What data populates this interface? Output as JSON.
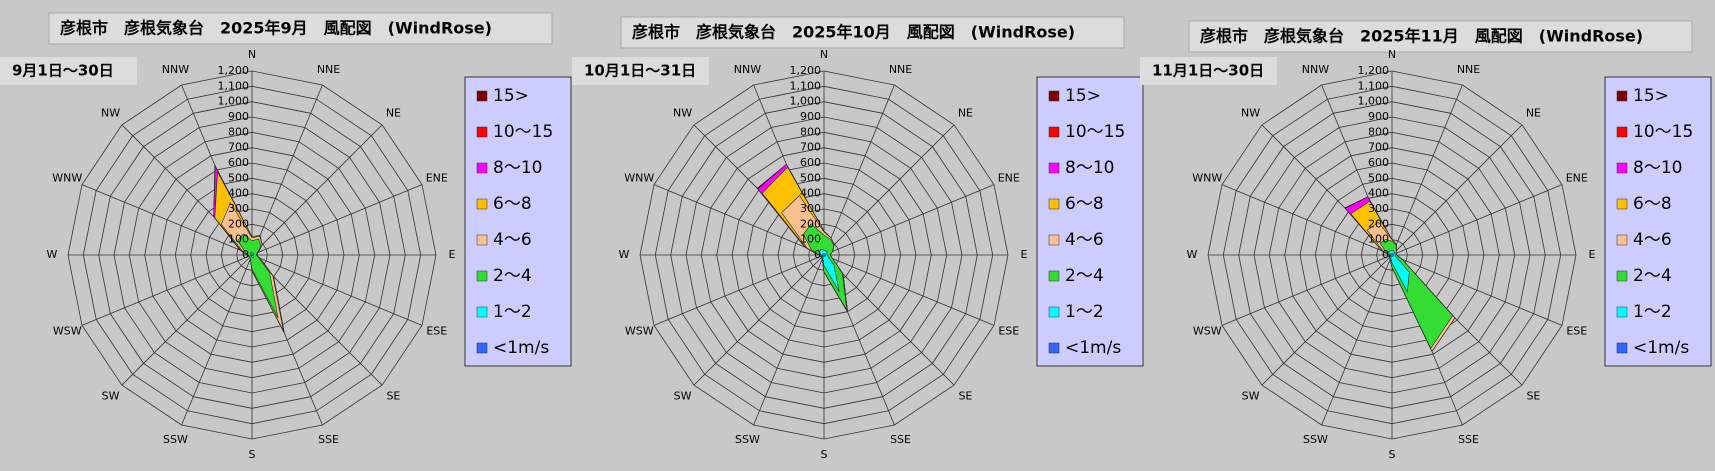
{
  "chart_data": [
    {
      "type": "windrose",
      "title": "彦根市　彦根気象台　2025年9月　風配図　(WindRose)",
      "subtitle": "9月1日～30日",
      "directions": [
        "N",
        "NNE",
        "NE",
        "ENE",
        "E",
        "ESE",
        "SE",
        "SSE",
        "S",
        "SSW",
        "SW",
        "WSW",
        "W",
        "WNW",
        "NW",
        "NNW"
      ],
      "rlim": [
        0,
        1200
      ],
      "rticks": [
        0,
        100,
        200,
        300,
        400,
        500,
        600,
        700,
        800,
        900,
        {
          "value": 1000,
          "label": "1,000"
        },
        {
          "value": 1100,
          "label": "1,100"
        },
        {
          "value": 1200,
          "label": "1,200"
        }
      ],
      "series": [
        {
          "name": "15>",
          "color": "#800000",
          "values": [
            0,
            0,
            0,
            0,
            0,
            0,
            0,
            0,
            0,
            0,
            0,
            0,
            0,
            0,
            0,
            0
          ]
        },
        {
          "name": "10～15",
          "color": "#ff0000",
          "values": [
            0,
            0,
            0,
            0,
            0,
            0,
            0,
            0,
            0,
            0,
            0,
            0,
            0,
            0,
            0,
            5
          ]
        },
        {
          "name": "8～10",
          "color": "#ff00ff",
          "values": [
            0,
            0,
            0,
            0,
            0,
            0,
            0,
            0,
            0,
            0,
            0,
            0,
            0,
            5,
            10,
            40
          ]
        },
        {
          "name": "6～8",
          "color": "#ffc000",
          "values": [
            5,
            5,
            0,
            0,
            0,
            0,
            5,
            15,
            0,
            0,
            0,
            0,
            0,
            10,
            60,
            220
          ]
        },
        {
          "name": "4～6",
          "color": "#fac090",
          "values": [
            20,
            20,
            10,
            5,
            0,
            10,
            30,
            90,
            10,
            0,
            0,
            0,
            5,
            20,
            150,
            220
          ]
        },
        {
          "name": "2～4",
          "color": "#33dd33",
          "values": [
            80,
            100,
            70,
            30,
            20,
            40,
            150,
            420,
            80,
            20,
            10,
            10,
            20,
            40,
            120,
            130
          ]
        },
        {
          "name": "1～2",
          "color": "#00ffff",
          "values": [
            10,
            10,
            10,
            5,
            5,
            5,
            10,
            20,
            10,
            5,
            5,
            5,
            5,
            5,
            10,
            15
          ]
        },
        {
          "name": "<1m/s",
          "color": "#3366ff",
          "values": [
            3,
            3,
            3,
            3,
            3,
            3,
            3,
            3,
            3,
            3,
            3,
            3,
            3,
            3,
            3,
            3
          ]
        }
      ]
    },
    {
      "type": "windrose",
      "title": "彦根市　彦根気象台　2025年10月　風配図　(WindRose)",
      "subtitle": "10月1日～31日",
      "directions": [
        "N",
        "NNE",
        "NE",
        "ENE",
        "E",
        "ESE",
        "SE",
        "SSE",
        "S",
        "SSW",
        "SW",
        "WSW",
        "W",
        "WNW",
        "NW",
        "NNW"
      ],
      "rlim": [
        0,
        1200
      ],
      "rticks": [
        0,
        100,
        200,
        300,
        400,
        500,
        600,
        700,
        800,
        900,
        {
          "value": 1000,
          "label": "1,000"
        },
        {
          "value": 1100,
          "label": "1,100"
        },
        {
          "value": 1200,
          "label": "1,200"
        }
      ],
      "series": [
        {
          "name": "15>",
          "color": "#800000",
          "values": [
            0,
            0,
            0,
            0,
            0,
            0,
            0,
            0,
            0,
            0,
            0,
            0,
            0,
            0,
            0,
            0
          ]
        },
        {
          "name": "10～15",
          "color": "#ff0000",
          "values": [
            0,
            0,
            0,
            0,
            0,
            0,
            0,
            0,
            0,
            0,
            0,
            0,
            0,
            0,
            5,
            0
          ]
        },
        {
          "name": "8～10",
          "color": "#ff00ff",
          "values": [
            0,
            0,
            0,
            0,
            0,
            0,
            0,
            0,
            0,
            0,
            0,
            0,
            0,
            5,
            40,
            20
          ]
        },
        {
          "name": "6～8",
          "color": "#ffc000",
          "values": [
            5,
            0,
            0,
            0,
            0,
            0,
            0,
            0,
            0,
            0,
            0,
            0,
            0,
            10,
            180,
            200
          ]
        },
        {
          "name": "4～6",
          "color": "#fac090",
          "values": [
            20,
            10,
            5,
            0,
            0,
            0,
            5,
            10,
            0,
            0,
            0,
            0,
            5,
            30,
            200,
            200
          ]
        },
        {
          "name": "2～4",
          "color": "#33dd33",
          "values": [
            100,
            80,
            60,
            40,
            20,
            30,
            80,
            130,
            40,
            10,
            5,
            5,
            10,
            60,
            150,
            180
          ]
        },
        {
          "name": "1～2",
          "color": "#00ffff",
          "values": [
            20,
            20,
            20,
            10,
            10,
            20,
            80,
            250,
            60,
            10,
            5,
            5,
            10,
            20,
            30,
            30
          ]
        },
        {
          "name": "<1m/s",
          "color": "#3366ff",
          "values": [
            10,
            10,
            10,
            10,
            10,
            10,
            10,
            10,
            10,
            10,
            10,
            10,
            10,
            10,
            10,
            10
          ]
        }
      ]
    },
    {
      "type": "windrose",
      "title": "彦根市　彦根気象台　2025年11月　風配図　(WindRose)",
      "subtitle": "11月1日～30日",
      "directions": [
        "N",
        "NNE",
        "NE",
        "ENE",
        "E",
        "ESE",
        "SE",
        "SSE",
        "S",
        "SSW",
        "SW",
        "WSW",
        "W",
        "WNW",
        "NW",
        "NNW"
      ],
      "rlim": [
        0,
        1200
      ],
      "rticks": [
        0,
        100,
        200,
        300,
        400,
        500,
        600,
        700,
        800,
        900,
        {
          "value": 1000,
          "label": "1,000"
        },
        {
          "value": 1100,
          "label": "1,100"
        },
        {
          "value": 1200,
          "label": "1,200"
        }
      ],
      "series": [
        {
          "name": "15>",
          "color": "#800000",
          "values": [
            0,
            0,
            0,
            0,
            0,
            0,
            0,
            0,
            0,
            0,
            0,
            0,
            0,
            0,
            0,
            0
          ]
        },
        {
          "name": "10～15",
          "color": "#ff0000",
          "values": [
            0,
            0,
            0,
            0,
            0,
            0,
            0,
            0,
            0,
            0,
            0,
            0,
            0,
            0,
            5,
            0
          ]
        },
        {
          "name": "8～10",
          "color": "#ff00ff",
          "values": [
            0,
            0,
            0,
            0,
            0,
            0,
            0,
            0,
            0,
            0,
            0,
            0,
            0,
            0,
            50,
            30
          ]
        },
        {
          "name": "6～8",
          "color": "#ffc000",
          "values": [
            0,
            0,
            0,
            0,
            0,
            0,
            0,
            0,
            0,
            0,
            0,
            0,
            0,
            10,
            150,
            150
          ]
        },
        {
          "name": "4～6",
          "color": "#fac090",
          "values": [
            10,
            5,
            0,
            0,
            0,
            0,
            20,
            20,
            0,
            0,
            0,
            0,
            0,
            20,
            120,
            120
          ]
        },
        {
          "name": "2～4",
          "color": "#33dd33",
          "values": [
            60,
            40,
            20,
            10,
            10,
            40,
            400,
            400,
            30,
            10,
            5,
            5,
            5,
            20,
            80,
            80
          ]
        },
        {
          "name": "1～2",
          "color": "#00ffff",
          "values": [
            20,
            20,
            10,
            10,
            10,
            20,
            150,
            250,
            40,
            10,
            5,
            5,
            5,
            10,
            20,
            20
          ]
        },
        {
          "name": "<1m/s",
          "color": "#3366ff",
          "values": [
            10,
            10,
            10,
            10,
            10,
            10,
            10,
            10,
            10,
            10,
            10,
            10,
            10,
            10,
            10,
            10
          ]
        }
      ]
    }
  ]
}
